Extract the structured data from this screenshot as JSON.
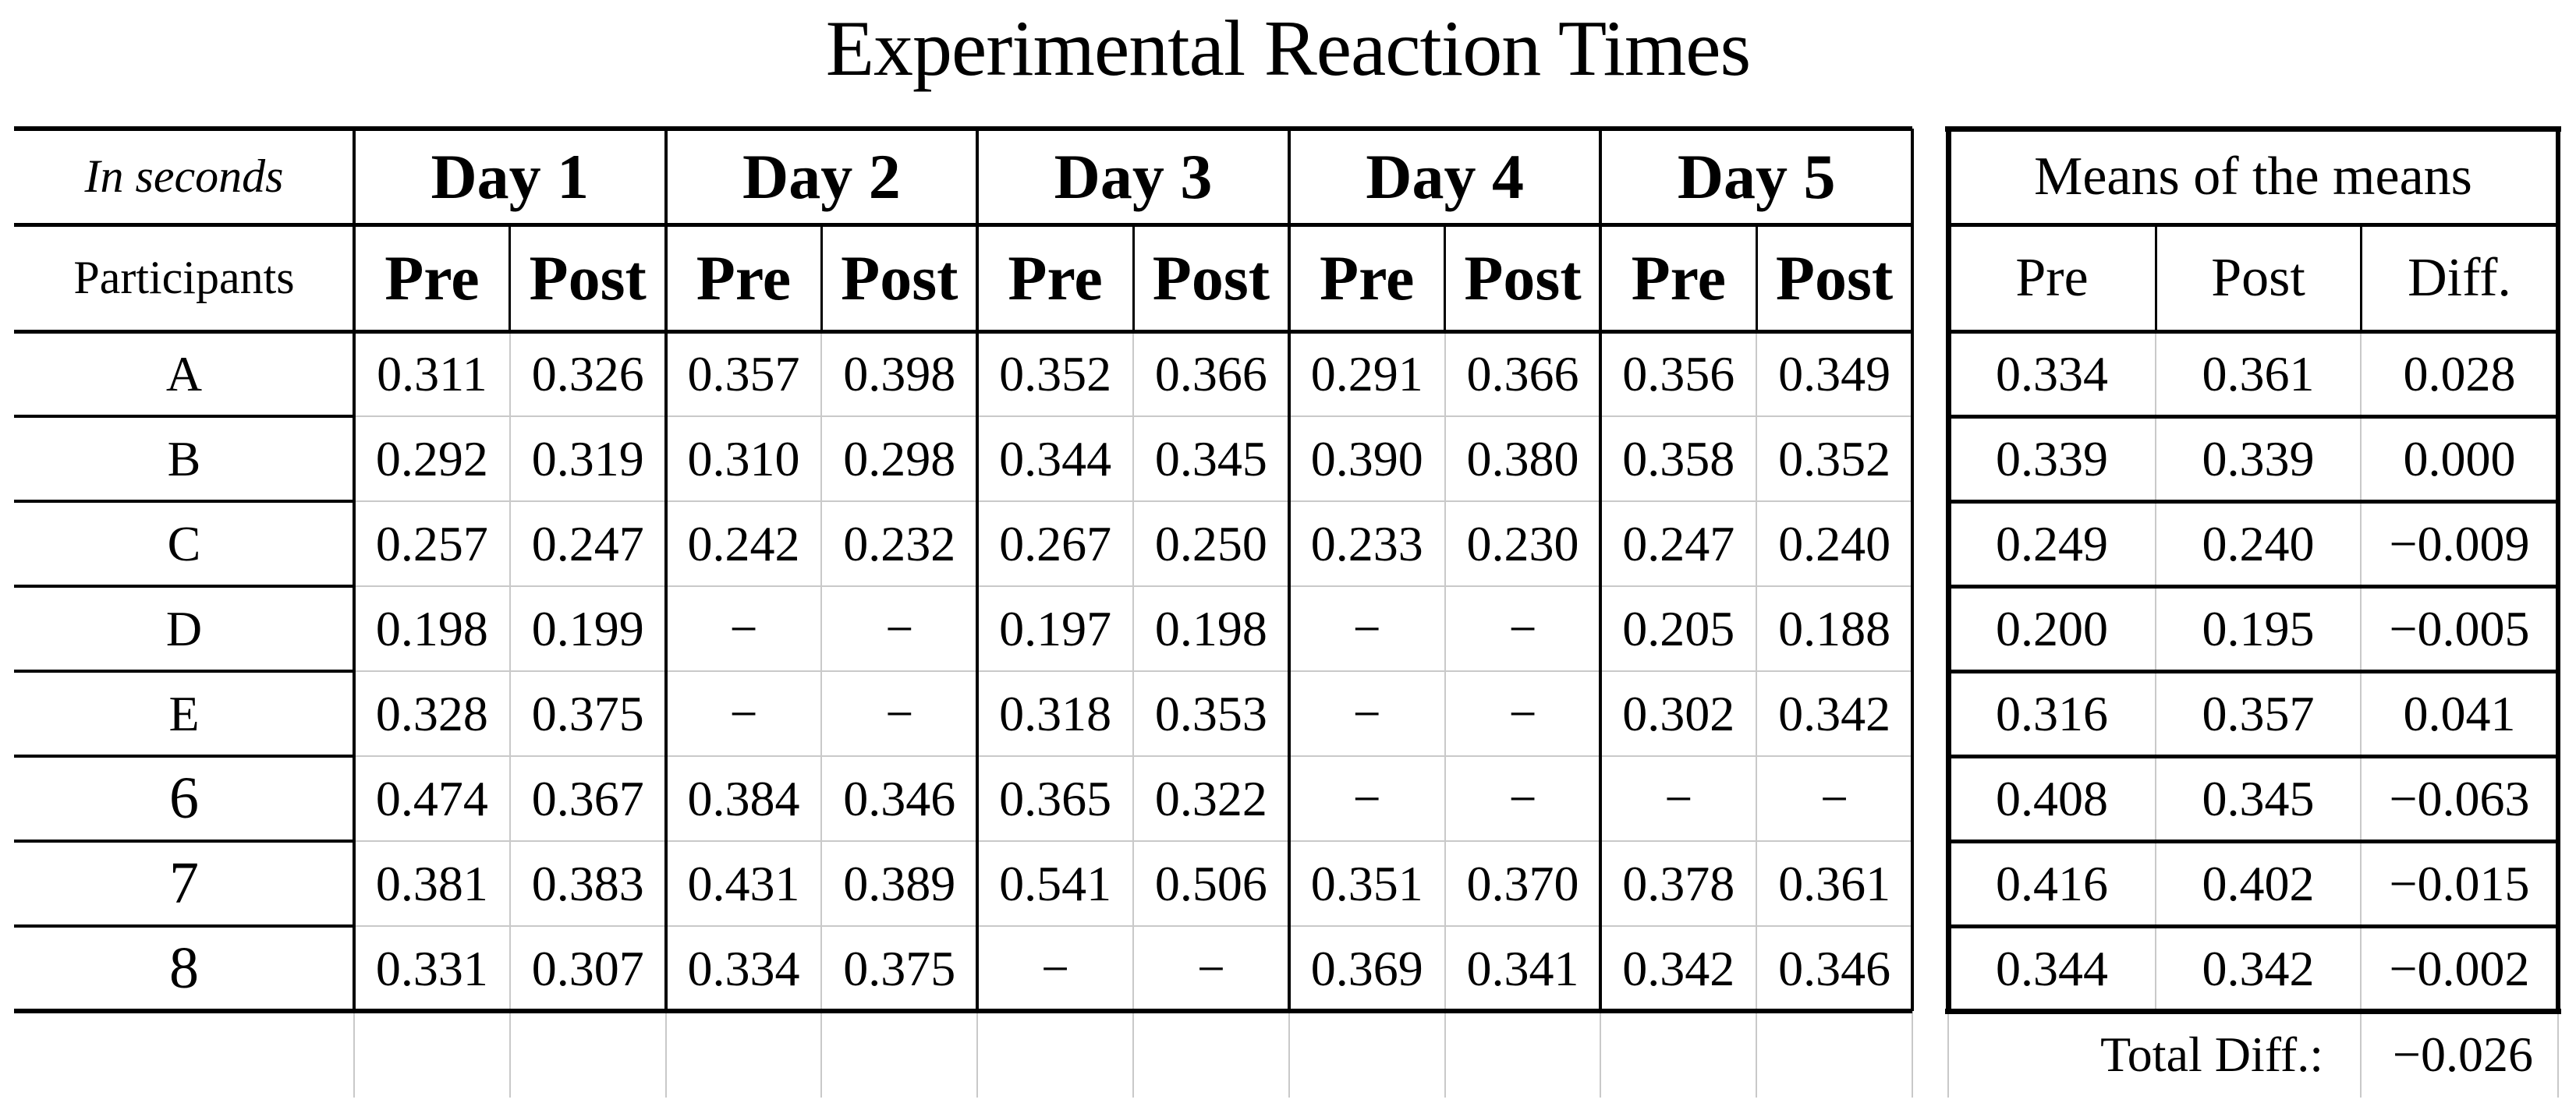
{
  "title": "Experimental Reaction Times",
  "left_table": {
    "unit_note": "In seconds",
    "row_header_label": "Participants",
    "day_headers": [
      "Day 1",
      "Day 2",
      "Day 3",
      "Day 4",
      "Day 5"
    ],
    "sub_headers": [
      "Pre",
      "Post"
    ],
    "missing_marker": "−",
    "rows": [
      {
        "participant": "A",
        "values": [
          "0.311",
          "0.326",
          "0.357",
          "0.398",
          "0.352",
          "0.366",
          "0.291",
          "0.366",
          "0.356",
          "0.349"
        ]
      },
      {
        "participant": "B",
        "values": [
          "0.292",
          "0.319",
          "0.310",
          "0.298",
          "0.344",
          "0.345",
          "0.390",
          "0.380",
          "0.358",
          "0.352"
        ]
      },
      {
        "participant": "C",
        "values": [
          "0.257",
          "0.247",
          "0.242",
          "0.232",
          "0.267",
          "0.250",
          "0.233",
          "0.230",
          "0.247",
          "0.240"
        ]
      },
      {
        "participant": "D",
        "values": [
          "0.198",
          "0.199",
          "−",
          "−",
          "0.197",
          "0.198",
          "−",
          "−",
          "0.205",
          "0.188"
        ]
      },
      {
        "participant": "E",
        "values": [
          "0.328",
          "0.375",
          "−",
          "−",
          "0.318",
          "0.353",
          "−",
          "−",
          "0.302",
          "0.342"
        ]
      },
      {
        "participant": "6",
        "values": [
          "0.474",
          "0.367",
          "0.384",
          "0.346",
          "0.365",
          "0.322",
          "−",
          "−",
          "−",
          "−"
        ]
      },
      {
        "participant": "7",
        "values": [
          "0.381",
          "0.383",
          "0.431",
          "0.389",
          "0.541",
          "0.506",
          "0.351",
          "0.370",
          "0.378",
          "0.361"
        ]
      },
      {
        "participant": "8",
        "values": [
          "0.331",
          "0.307",
          "0.334",
          "0.375",
          "−",
          "−",
          "0.369",
          "0.341",
          "0.342",
          "0.346"
        ]
      }
    ]
  },
  "means_table": {
    "title": "Means of the means",
    "columns": [
      "Pre",
      "Post",
      "Diff."
    ],
    "rows": [
      [
        "0.334",
        "0.361",
        "0.028"
      ],
      [
        "0.339",
        "0.339",
        "0.000"
      ],
      [
        "0.249",
        "0.240",
        "−0.009"
      ],
      [
        "0.200",
        "0.195",
        "−0.005"
      ],
      [
        "0.316",
        "0.357",
        "0.041"
      ],
      [
        "0.408",
        "0.345",
        "−0.063"
      ],
      [
        "0.416",
        "0.402",
        "−0.015"
      ],
      [
        "0.344",
        "0.342",
        "−0.002"
      ]
    ]
  },
  "footer": {
    "total_label": "Total Diff.:",
    "total_value": "−0.026"
  },
  "colors": {
    "background": "#ffffff",
    "text": "#000000",
    "grid_major": "#000000",
    "grid_minor": "#c9c9c9"
  }
}
